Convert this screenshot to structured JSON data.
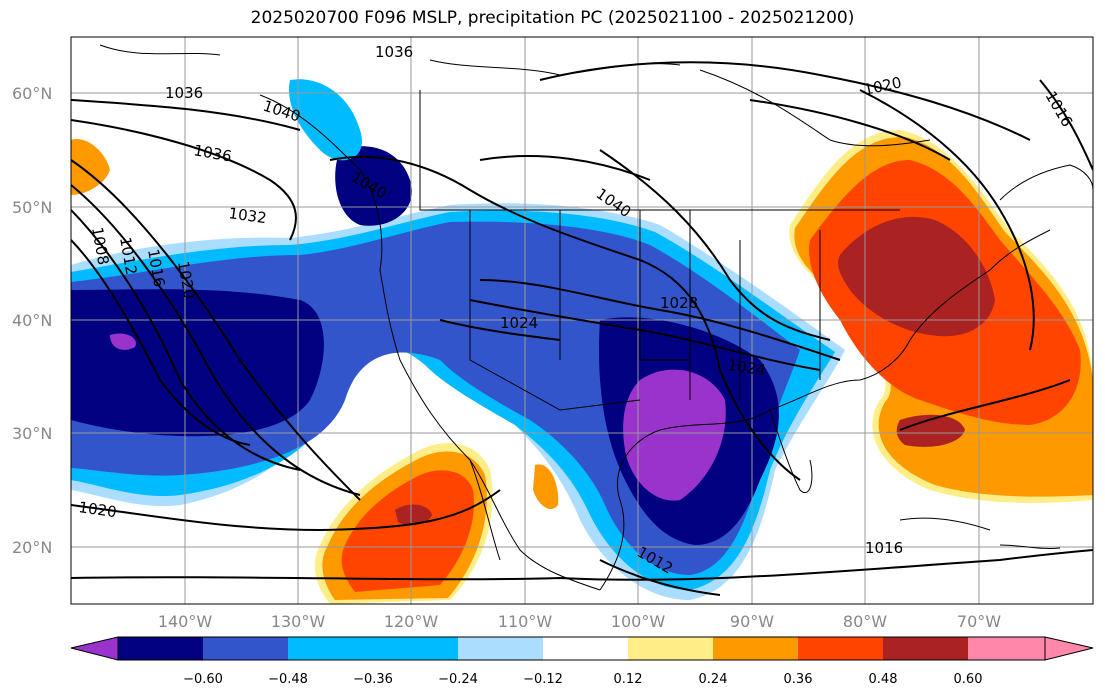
{
  "title": "2025020700 F096 MSLP, precipitation PC (2025021100 - 2025021200)",
  "latitude_labels": [
    "60°N",
    "50°N",
    "40°N",
    "30°N",
    "20°N"
  ],
  "longitude_labels": [
    "140°W",
    "130°W",
    "120°W",
    "110°W",
    "100°W",
    "90°W",
    "80°W",
    "70°W"
  ],
  "isobar_labels": [
    "1036",
    "1036",
    "1040",
    "1036",
    "1040",
    "1032",
    "1040",
    "1020",
    "1016",
    "1008",
    "1012",
    "1016",
    "1020",
    "1028",
    "1024",
    "1024",
    "1020",
    "1012",
    "1016"
  ],
  "colorbar": {
    "ticks": [
      "−0.60",
      "−0.48",
      "−0.36",
      "−0.24",
      "−0.12",
      "0.12",
      "0.24",
      "0.36",
      "0.48",
      "0.60"
    ],
    "colors": [
      "#9933cc",
      "#000080",
      "#3355cc",
      "#00bbff",
      "#aaddff",
      "#ffffff",
      "#ffee88",
      "#ff9900",
      "#ff4400",
      "#aa2222",
      "#ff88aa"
    ]
  }
}
